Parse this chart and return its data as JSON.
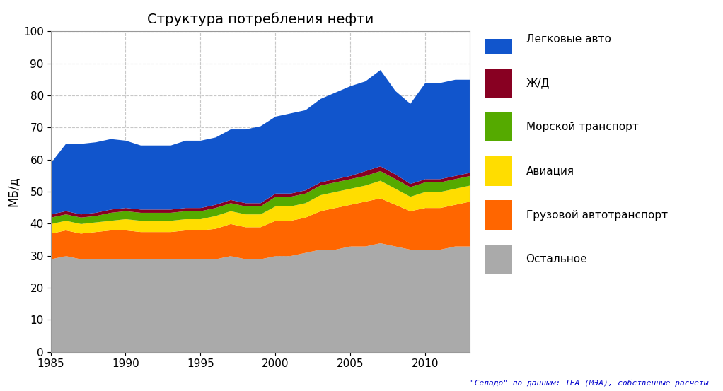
{
  "title": "Структура потребления нефти",
  "ylabel": "МБ/д",
  "source_text": "\"Селадо\" по данным: IEA (МЭА), собственные расчёты",
  "years": [
    1985,
    1986,
    1987,
    1988,
    1989,
    1990,
    1991,
    1992,
    1993,
    1994,
    1995,
    1996,
    1997,
    1998,
    1999,
    2000,
    2001,
    2002,
    2003,
    2004,
    2005,
    2006,
    2007,
    2008,
    2009,
    2010,
    2011,
    2012,
    2013
  ],
  "series": {
    "Остальное": [
      29,
      30,
      29,
      29,
      29,
      29,
      29,
      29,
      29,
      29,
      29,
      29,
      30,
      29,
      29,
      30,
      30,
      31,
      32,
      32,
      33,
      33,
      34,
      33,
      32,
      32,
      32,
      33,
      33
    ],
    "Грузовой автотранспорт": [
      8,
      8,
      8,
      8.5,
      9,
      9,
      8.5,
      8.5,
      8.5,
      9,
      9,
      9.5,
      10,
      10,
      10,
      11,
      11,
      11,
      12,
      13,
      13,
      14,
      14,
      13,
      12,
      13,
      13,
      13,
      14
    ],
    "Авиация": [
      3,
      3,
      3,
      3,
      3,
      3.5,
      3.5,
      3.5,
      3.5,
      3.5,
      3.5,
      4,
      4,
      4,
      4,
      4.5,
      4.5,
      4.5,
      5,
      5,
      5,
      5,
      5.5,
      5,
      4.5,
      5,
      5,
      5,
      5
    ],
    "Морской транспорт": [
      2,
      2,
      2,
      2,
      2.5,
      2.5,
      2.5,
      2.5,
      2.5,
      2.5,
      2.5,
      2.5,
      2.5,
      2.5,
      2.5,
      3,
      3,
      3,
      3,
      3,
      3,
      3,
      3,
      3,
      3,
      3,
      3,
      3,
      3
    ],
    "Ж/Д": [
      1,
      1,
      1,
      1,
      1,
      1,
      1,
      1,
      1,
      1,
      1,
      1,
      1,
      1,
      1,
      1,
      1,
      1,
      1,
      1,
      1,
      1.5,
      1.5,
      1.5,
      1,
      1,
      1,
      1,
      1
    ],
    "Легковые авто": [
      16,
      21,
      22,
      22,
      22,
      21,
      20,
      20,
      20,
      21,
      21,
      21,
      22,
      23,
      24,
      24,
      25,
      25,
      26,
      27,
      28,
      28,
      30,
      26,
      25,
      30,
      30,
      30,
      29
    ]
  },
  "colors": {
    "Остальное": "#aaaaaa",
    "Грузовой автотранспорт": "#ff6600",
    "Авиация": "#ffdd00",
    "Морской транспорт": "#55aa00",
    "Ж/Д": "#880022",
    "Легковые авто": "#1155cc"
  },
  "ylim": [
    0,
    100
  ],
  "yticks": [
    0,
    10,
    20,
    30,
    40,
    50,
    60,
    70,
    80,
    90,
    100
  ],
  "xlim": [
    1985,
    2013
  ],
  "xticks": [
    1985,
    1990,
    1995,
    2000,
    2005,
    2010
  ],
  "background_color": "#ffffff",
  "plot_background": "#ffffff",
  "grid_color": "#c8c8c8",
  "legend_order": [
    "Легковые авто",
    "Ж/Д",
    "Морской транспорт",
    "Авиация",
    "Грузовой автотранспорт",
    "Остальное"
  ],
  "series_order": [
    "Остальное",
    "Грузовой автотранспорт",
    "Авиация",
    "Морской транспорт",
    "Ж/Д",
    "Легковые авто"
  ],
  "figsize": [
    10.22,
    5.53
  ],
  "dpi": 100
}
